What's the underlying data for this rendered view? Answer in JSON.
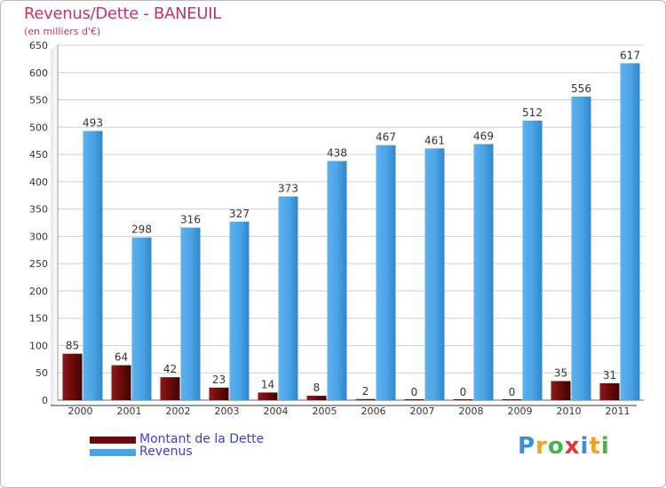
{
  "header": {
    "title": "Revenus/Dette - BANEUIL",
    "subtitle": "(en milliers d'€)"
  },
  "legend": {
    "items": [
      {
        "label": "Montant de la Dette",
        "color": "#6b0a0a"
      },
      {
        "label": "Revenus",
        "color": "#4aa3e6"
      }
    ]
  },
  "logo": {
    "text": "Proxiti",
    "letters": [
      {
        "ch": "P",
        "color": "#3a8fd6"
      },
      {
        "ch": "r",
        "color": "#f2a31b"
      },
      {
        "ch": "o",
        "color": "#4caf50"
      },
      {
        "ch": "x",
        "color": "#e53935"
      },
      {
        "ch": "i",
        "color": "#3a8fd6"
      },
      {
        "ch": "t",
        "color": "#f2a31b"
      },
      {
        "ch": "i",
        "color": "#4caf50"
      }
    ]
  },
  "colors": {
    "title": "#c8336e",
    "grid": "#cfcfcf",
    "axis": "#333333",
    "plot_background": "#ffffff"
  },
  "chart_data": {
    "type": "bar",
    "title": "Revenus/Dette - BANEUIL",
    "subtitle": "(en milliers d'€)",
    "categories": [
      "2000",
      "2001",
      "2002",
      "2003",
      "2004",
      "2005",
      "2006",
      "2007",
      "2008",
      "2009",
      "2010",
      "2011"
    ],
    "series": [
      {
        "name": "Montant de la Dette",
        "values": [
          85,
          64,
          42,
          23,
          14,
          8,
          2,
          0,
          0,
          0,
          35,
          31
        ],
        "color": "#6b0a0a"
      },
      {
        "name": "Revenus",
        "values": [
          493,
          298,
          316,
          327,
          373,
          438,
          467,
          461,
          469,
          512,
          556,
          617
        ],
        "color": "#4aa3e6"
      }
    ],
    "ylim": [
      0,
      650
    ],
    "yticks": [
      0,
      50,
      100,
      150,
      200,
      250,
      300,
      350,
      400,
      450,
      500,
      550,
      600,
      650
    ],
    "grid": true,
    "legend_position": "bottom-left"
  }
}
